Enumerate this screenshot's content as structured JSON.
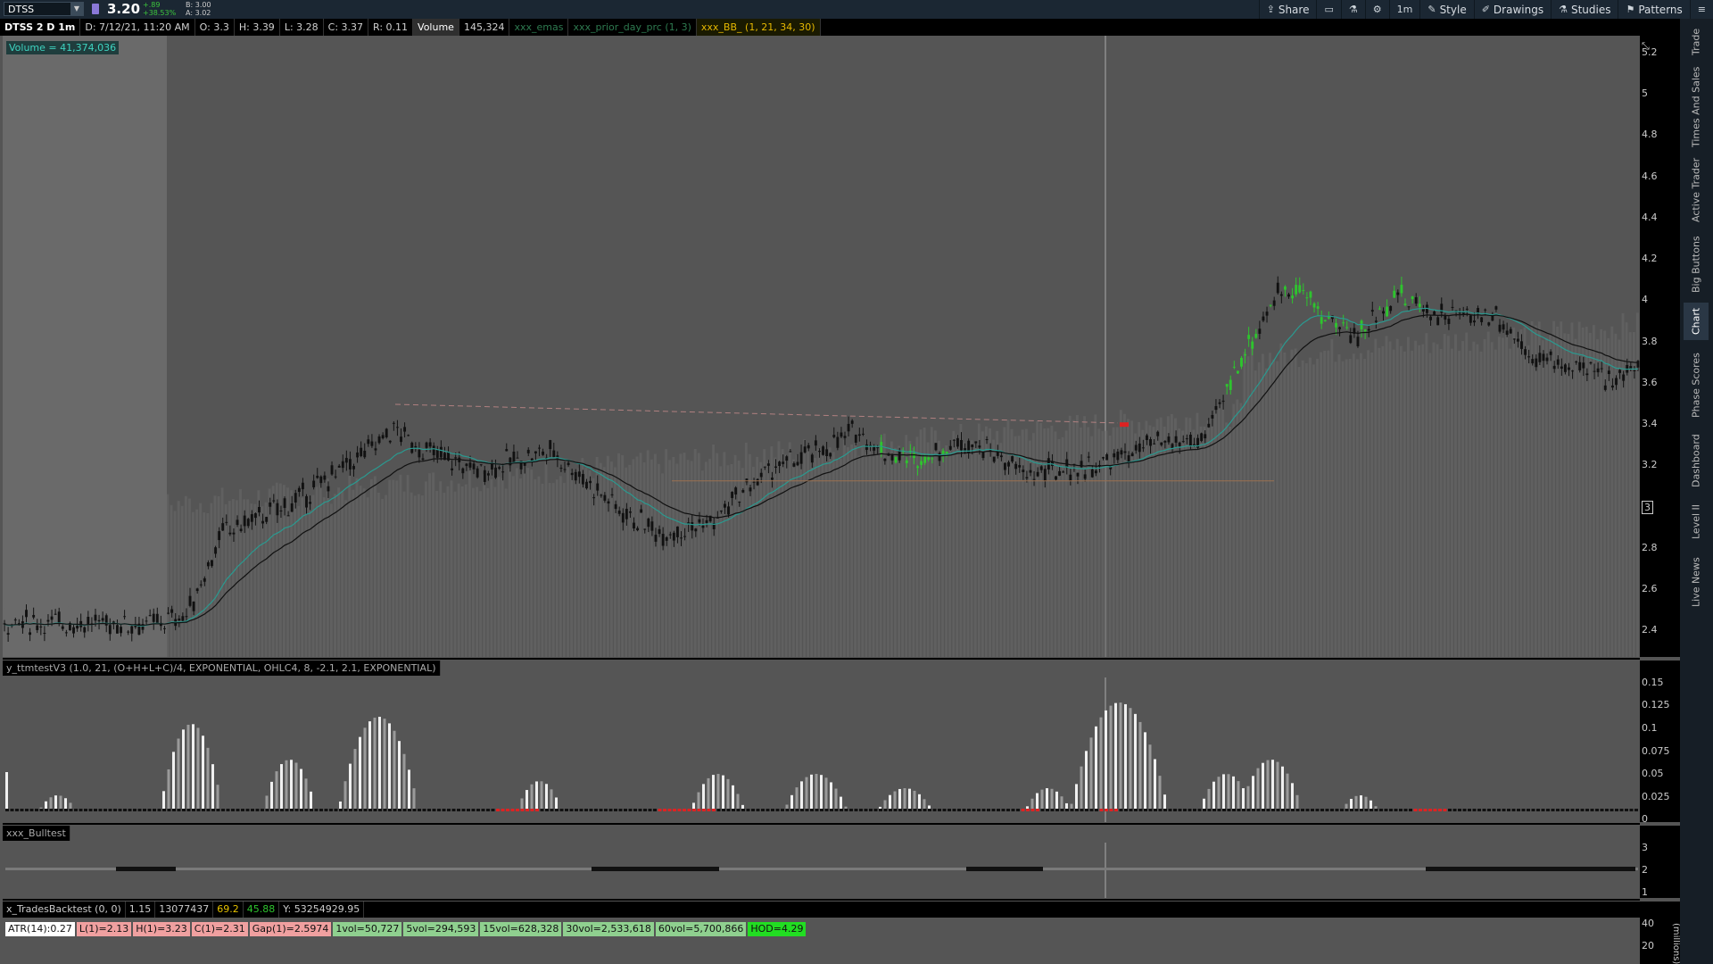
{
  "topbar": {
    "symbol": "DTSS",
    "last": "3.20",
    "change_abs": "+.89",
    "change_pct": "+38.53%",
    "bid": "B: 3.00",
    "ask": "A: 3.02",
    "buttons": [
      {
        "label": "Share",
        "icon": "share-icon"
      },
      {
        "label": "",
        "icon": "window-icon"
      },
      {
        "label": "",
        "icon": "flask-icon"
      },
      {
        "label": "",
        "icon": "gear-icon"
      },
      {
        "label": "1m",
        "icon": "timeframe-icon"
      },
      {
        "label": "Style",
        "icon": "style-icon"
      },
      {
        "label": "Drawings",
        "icon": "drawings-icon"
      },
      {
        "label": "Studies",
        "icon": "studies-icon"
      },
      {
        "label": "Patterns",
        "icon": "patterns-icon"
      },
      {
        "label": "",
        "icon": "menu-icon"
      }
    ]
  },
  "infobar": {
    "title": "DTSS 2 D 1m",
    "date": "D: 7/12/21, 11:20 AM",
    "open": "O: 3.3",
    "high": "H: 3.39",
    "low": "L: 3.28",
    "close": "C: 3.37",
    "range": "R: 0.11",
    "volume_label": "Volume",
    "volume_value": "145,324",
    "study1": "xxx_emas",
    "study2": "xxx_prior_day_prc (1, 3)",
    "bb": "xxx_BB_ (1, 21, 34, 30)"
  },
  "volume_badge": "Volume = 41,374,036",
  "price_axis": [
    "5.2",
    "5",
    "4.8",
    "4.6",
    "4.4",
    "4.2",
    "4",
    "3.8",
    "3.6",
    "3.4",
    "3.2",
    "3",
    "2.8",
    "2.6",
    "2.4"
  ],
  "price_marker": "3",
  "study_squeeze": {
    "label": "y_ttmtestV3 (1.0, 21, (O+H+L+C)/4, EXPONENTIAL, OHLC4, 8, -2.1, 2.1, EXPONENTIAL)",
    "axis": [
      "0.15",
      "0.125",
      "0.1",
      "0.075",
      "0.05",
      "0.025",
      "0"
    ]
  },
  "study_bull": {
    "label": "xxx_Bulltest",
    "axis": [
      "3",
      "2",
      "1"
    ]
  },
  "study_trades": {
    "label": "x_TradesBacktest (0, 0)",
    "v1": "1.15",
    "v2": "13077437",
    "v3": "69.2",
    "v4": "45.88",
    "v5": "Y: 53254929.95"
  },
  "labels": [
    {
      "text": "ATR(14):0.27",
      "bg": "#ffffff"
    },
    {
      "text": "L(1)=2.13",
      "bg": "#f0a0a0"
    },
    {
      "text": "H(1)=3.23",
      "bg": "#f0a0a0"
    },
    {
      "text": "C(1)=2.31",
      "bg": "#f0a0a0"
    },
    {
      "text": "Gap(1)=2.5974",
      "bg": "#f0a0a0"
    },
    {
      "text": "1vol=50,727",
      "bg": "#8fd08f"
    },
    {
      "text": "5vol=294,593",
      "bg": "#8fd08f"
    },
    {
      "text": "15vol=628,328",
      "bg": "#8fd08f"
    },
    {
      "text": "30vol=2,533,618",
      "bg": "#8fd08f"
    },
    {
      "text": "60vol=5,700,866",
      "bg": "#8fd08f"
    },
    {
      "text": "HOD=4.29",
      "bg": "#22dd22"
    }
  ],
  "bottom_axis": [
    "40",
    "20"
  ],
  "bottom_axis_unit": "(millions)",
  "side_tabs": [
    "Trade",
    "Times And Sales",
    "Active Trader",
    "Big Buttons",
    "Chart",
    "Phase Scores",
    "Dashboard",
    "Level II",
    "Live News"
  ],
  "chart_data": {
    "type": "candlestick",
    "ylim": [
      2.3,
      5.3
    ],
    "candles": [
      3.2,
      3.25,
      3.3,
      3.2,
      3.15,
      3.3,
      3.35,
      3.3,
      3.22,
      3.18,
      3.2,
      3.25
    ],
    "colors": {
      "up": "#2ec42e",
      "down": "#111111",
      "ema_fast": "#2a9a90",
      "ema_slow": "#111111",
      "volume": "#6a6a6a",
      "signal_red": "#dd2222",
      "marker_yellow": "#e6c200"
    }
  }
}
